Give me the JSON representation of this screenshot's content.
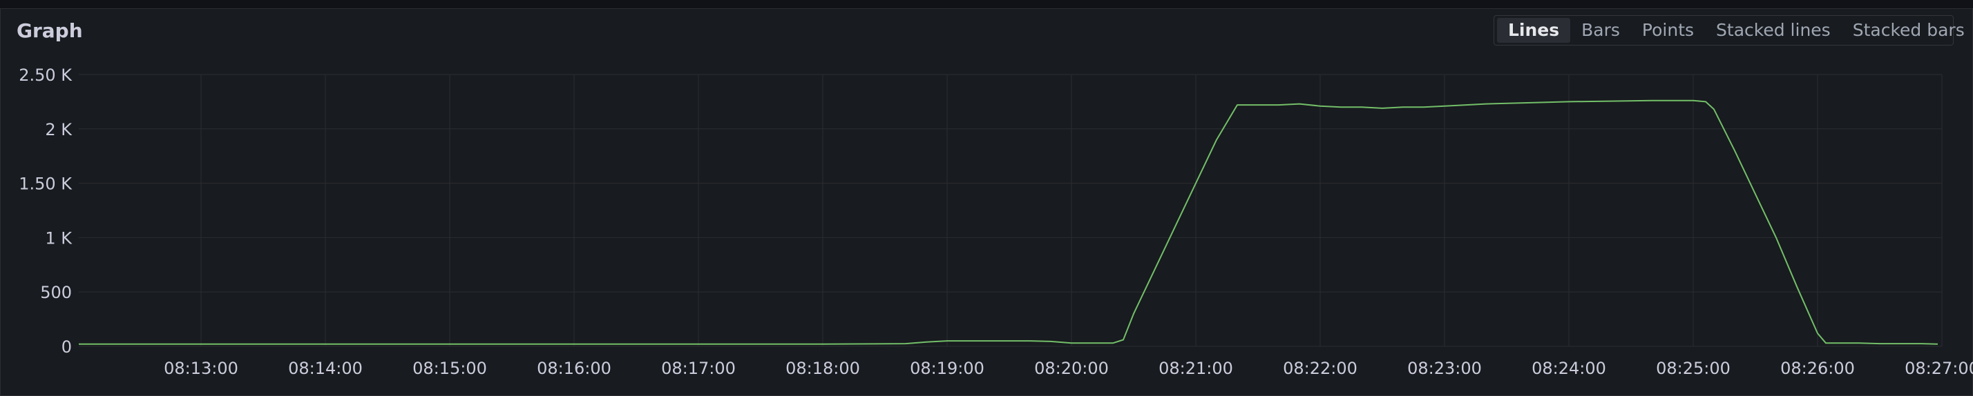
{
  "panel": {
    "title": "Graph",
    "tabs": [
      {
        "label": "Lines",
        "active": true
      },
      {
        "label": "Bars",
        "active": false
      },
      {
        "label": "Points",
        "active": false
      },
      {
        "label": "Stacked lines",
        "active": false
      },
      {
        "label": "Stacked bars",
        "active": false
      }
    ]
  },
  "colors": {
    "series": "#73bf69",
    "grid": "#2a2c31",
    "text": "#ccccdc"
  },
  "chart_data": {
    "type": "line",
    "title": "Graph",
    "xlabel": "",
    "ylabel": "",
    "x_range": [
      "08:12:01",
      "08:27:00"
    ],
    "ylim": [
      0,
      2500
    ],
    "grid": true,
    "y_ticks": [
      {
        "value": 0,
        "label": "0"
      },
      {
        "value": 500,
        "label": "500"
      },
      {
        "value": 1000,
        "label": "1 K"
      },
      {
        "value": 1500,
        "label": "1.50 K"
      },
      {
        "value": 2000,
        "label": "2 K"
      },
      {
        "value": 2500,
        "label": "2.50 K"
      }
    ],
    "x_ticks": [
      "08:13:00",
      "08:14:00",
      "08:15:00",
      "08:16:00",
      "08:17:00",
      "08:18:00",
      "08:19:00",
      "08:20:00",
      "08:21:00",
      "08:22:00",
      "08:23:00",
      "08:24:00",
      "08:25:00",
      "08:26:00",
      "08:27:00"
    ],
    "series": [
      {
        "x": [
          "08:12:01",
          "08:13:00",
          "08:14:00",
          "08:15:00",
          "08:16:00",
          "08:17:00",
          "08:18:00",
          "08:18:40",
          "08:18:50",
          "08:19:00",
          "08:19:10",
          "08:19:20",
          "08:19:30",
          "08:19:40",
          "08:19:50",
          "08:20:00",
          "08:20:10",
          "08:20:20",
          "08:20:25",
          "08:20:30",
          "08:20:40",
          "08:20:50",
          "08:21:00",
          "08:21:10",
          "08:21:20",
          "08:21:30",
          "08:21:40",
          "08:21:50",
          "08:22:00",
          "08:22:10",
          "08:22:20",
          "08:22:30",
          "08:22:40",
          "08:22:50",
          "08:23:00",
          "08:23:20",
          "08:23:40",
          "08:24:00",
          "08:24:20",
          "08:24:40",
          "08:25:00",
          "08:25:06",
          "08:25:10",
          "08:25:20",
          "08:25:30",
          "08:25:40",
          "08:25:50",
          "08:26:00",
          "08:26:04",
          "08:26:10",
          "08:26:20",
          "08:26:30",
          "08:26:40",
          "08:26:50",
          "08:26:58"
        ],
        "values": [
          20,
          20,
          20,
          20,
          20,
          20,
          20,
          25,
          40,
          50,
          50,
          50,
          50,
          50,
          45,
          30,
          30,
          30,
          60,
          300,
          700,
          1100,
          1500,
          1900,
          2220,
          2220,
          2220,
          2230,
          2210,
          2200,
          2200,
          2190,
          2200,
          2200,
          2210,
          2230,
          2240,
          2250,
          2255,
          2260,
          2260,
          2250,
          2180,
          1800,
          1400,
          1000,
          550,
          120,
          30,
          30,
          30,
          25,
          25,
          25,
          20
        ]
      }
    ]
  }
}
